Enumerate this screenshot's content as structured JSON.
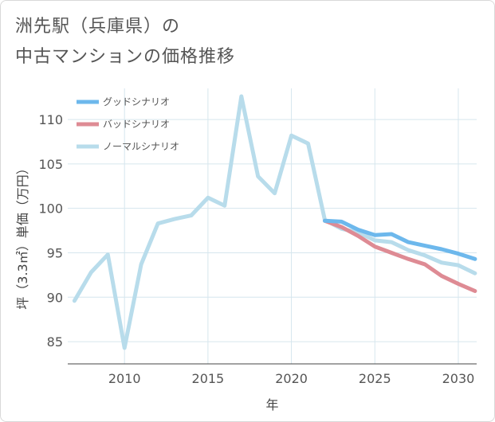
{
  "header": {
    "title_line1": "洲先駅（兵庫県）の",
    "title_line2": "中古マンションの価格推移"
  },
  "chart_data": {
    "type": "line",
    "title": "洲先駅（兵庫県）の中古マンションの価格推移",
    "xlabel": "年",
    "ylabel": "坪（3.3㎡）単価（万円）",
    "xlim": [
      2006.6,
      2031.1
    ],
    "ylim": [
      82.5,
      113.5
    ],
    "x_ticks": [
      2010,
      2015,
      2020,
      2025,
      2030
    ],
    "y_ticks": [
      85,
      90,
      95,
      100,
      105,
      110
    ],
    "grid": true,
    "legend_position": "top-left",
    "series": [
      {
        "name": "グッドシナリオ",
        "color": "#6db8ec",
        "x": [
          2022,
          2023,
          2024,
          2025,
          2026,
          2027,
          2028,
          2029,
          2030,
          2031
        ],
        "y": [
          98.6,
          98.5,
          97.6,
          97.0,
          97.1,
          96.2,
          95.8,
          95.4,
          94.9,
          94.3
        ]
      },
      {
        "name": "バッドシナリオ",
        "color": "#de8b94",
        "x": [
          2022,
          2023,
          2024,
          2025,
          2026,
          2027,
          2028,
          2029,
          2030,
          2031
        ],
        "y": [
          98.6,
          97.9,
          96.9,
          95.7,
          95.0,
          94.3,
          93.7,
          92.4,
          91.5,
          90.7
        ]
      },
      {
        "name": "ノーマルシナリオ",
        "color": "#b8dceb",
        "x": [
          2007,
          2008,
          2009,
          2010,
          2011,
          2012,
          2013,
          2014,
          2015,
          2016,
          2017,
          2018,
          2019,
          2020,
          2021,
          2022,
          2023,
          2024,
          2025,
          2026,
          2027,
          2028,
          2029,
          2030,
          2031
        ],
        "y": [
          89.6,
          92.8,
          94.8,
          84.3,
          93.7,
          98.3,
          98.8,
          99.2,
          101.2,
          100.3,
          112.6,
          103.6,
          101.7,
          108.2,
          107.3,
          98.7,
          97.7,
          97.3,
          96.4,
          96.2,
          95.3,
          94.7,
          93.9,
          93.6,
          92.7
        ]
      }
    ]
  }
}
